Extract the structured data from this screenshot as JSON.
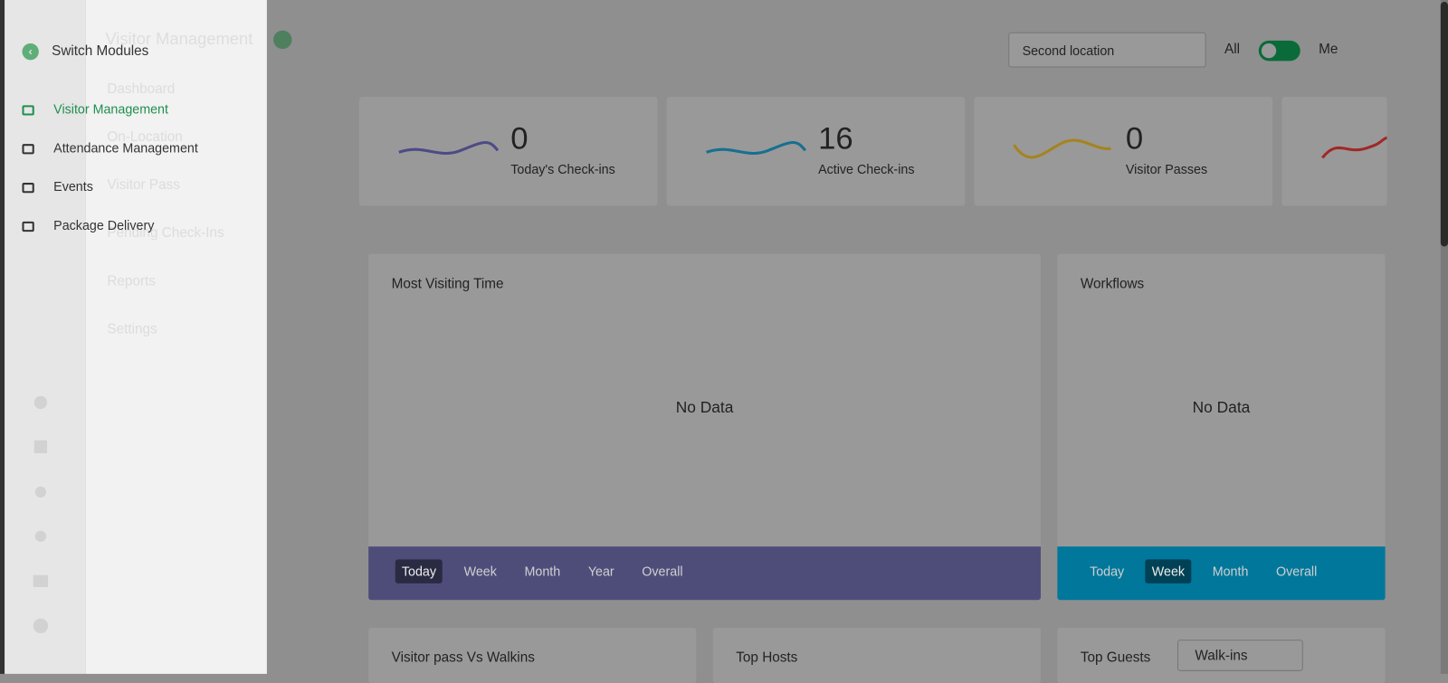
{
  "app": {
    "title": "Visitor Management",
    "nav": [
      "Dashboard",
      "On-Location",
      "Visitor Pass",
      "Pending Check-Ins",
      "Reports",
      "Settings"
    ],
    "location": "Second location",
    "toggle_left": "All",
    "toggle_right": "Me",
    "stats": [
      {
        "value": 0,
        "label": "Today's Check-ins",
        "color": "#4d4b86"
      },
      {
        "value": 16,
        "label": "Active Check-ins",
        "color": "#17708f"
      },
      {
        "value": 0,
        "label": "Visitor Passes",
        "color": "#a5841d"
      }
    ],
    "stat_partial_color": "#a02828",
    "panels": [
      {
        "title": "Most Visiting Time",
        "empty": "No Data",
        "tabs": [
          "Today",
          "Week",
          "Month",
          "Year",
          "Overall"
        ],
        "active": 0,
        "bar": "#4e4d7a"
      },
      {
        "title": "Workflows",
        "empty": "No Data",
        "tabs": [
          "Today",
          "Week",
          "Month",
          "Overall"
        ],
        "active": 1,
        "bar": "#00779b"
      }
    ],
    "bottom": [
      "Visitor pass Vs Walkins",
      "Top Hosts",
      "Top Guests"
    ],
    "guest_select": "Walk-ins"
  },
  "switcher": {
    "title": "Switch Modules",
    "modules": [
      "Visitor Management",
      "Attendance Management",
      "Events",
      "Package Delivery"
    ],
    "active": 0
  }
}
